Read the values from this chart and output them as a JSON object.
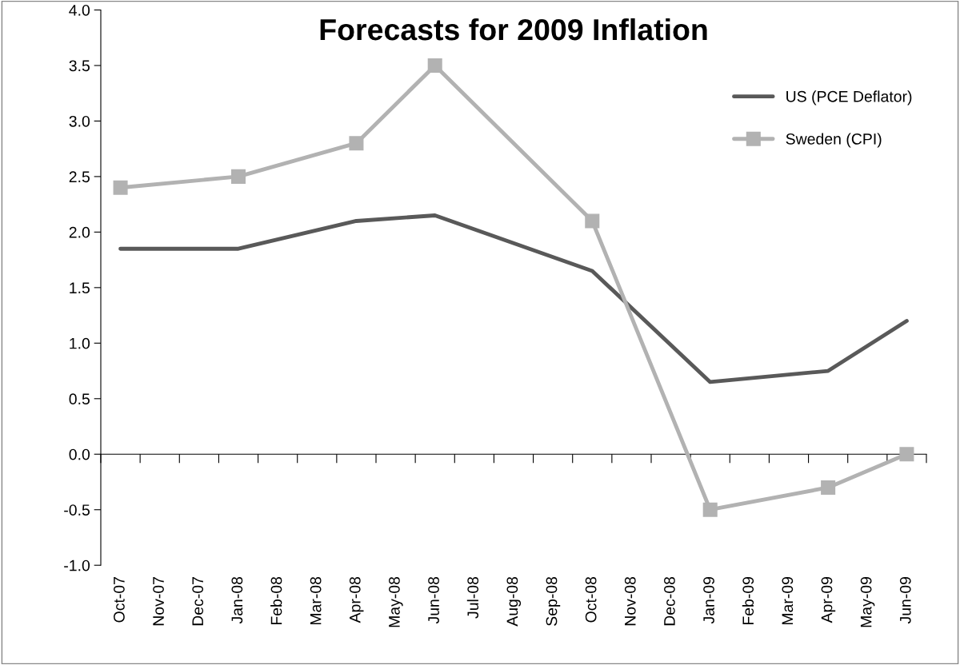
{
  "chart_data": {
    "type": "line",
    "title": "Forecasts for 2009 Inflation",
    "categories": [
      "Oct-07",
      "Nov-07",
      "Dec-07",
      "Jan-08",
      "Feb-08",
      "Mar-08",
      "Apr-08",
      "May-08",
      "Jun-08",
      "Jul-08",
      "Aug-08",
      "Sep-08",
      "Oct-08",
      "Nov-08",
      "Dec-08",
      "Jan-09",
      "Feb-09",
      "Mar-09",
      "Apr-09",
      "May-09",
      "Jun-09"
    ],
    "series": [
      {
        "name": "US (PCE Deflator)",
        "color": "#595959",
        "marker": "none",
        "values": [
          1.85,
          null,
          null,
          1.85,
          null,
          null,
          2.1,
          null,
          2.15,
          null,
          null,
          null,
          1.65,
          null,
          null,
          0.65,
          null,
          null,
          0.75,
          null,
          1.2
        ]
      },
      {
        "name": "Sweden (CPI)",
        "color": "#b2b2b2",
        "marker": "square",
        "values": [
          2.4,
          null,
          null,
          2.5,
          null,
          null,
          2.8,
          null,
          3.5,
          null,
          null,
          null,
          2.1,
          null,
          null,
          -0.5,
          null,
          null,
          -0.3,
          null,
          0.0
        ]
      }
    ],
    "ylim": [
      -1.0,
      4.0
    ],
    "yticks": [
      {
        "value": -1.0,
        "label": "-1.0"
      },
      {
        "value": -0.5,
        "label": "-0.5"
      },
      {
        "value": 0,
        "label": "0.0"
      },
      {
        "value": 0.5,
        "label": "0.5"
      },
      {
        "value": 1.0,
        "label": "1.0"
      },
      {
        "value": 1.5,
        "label": "1.5"
      },
      {
        "value": 2.0,
        "label": "2.0"
      },
      {
        "value": 2.5,
        "label": "2.5"
      },
      {
        "value": 3.0,
        "label": "3.0"
      },
      {
        "value": 3.5,
        "label": "3.5"
      },
      {
        "value": 4.0,
        "label": "4.0"
      }
    ],
    "legend": "top right",
    "line_style": "solid"
  }
}
